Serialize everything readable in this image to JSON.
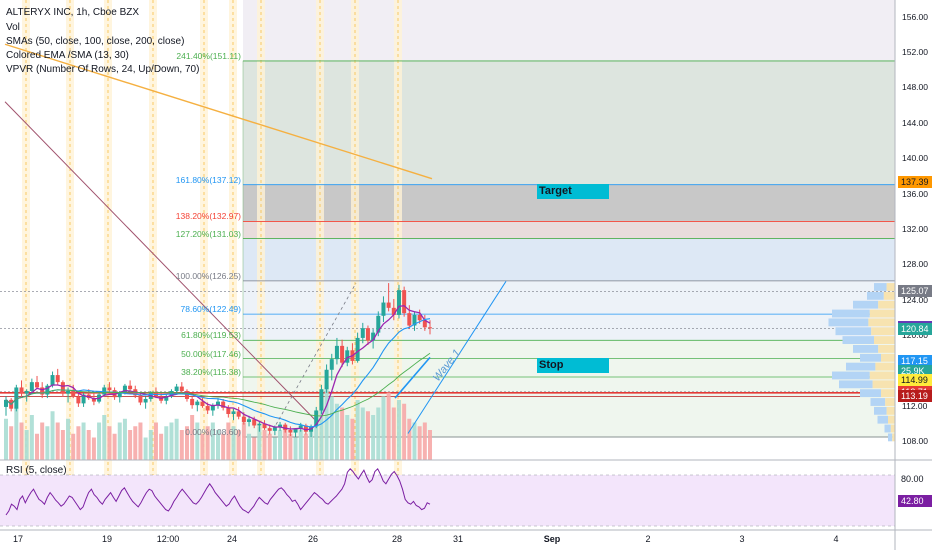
{
  "chart_data": {
    "type": "candlestick",
    "title": "ALTERYX INC, 1h, Cboe BZX",
    "indicators": [
      "Vol",
      "SMAs (50, close, 100, close, 200, close)",
      "Colored EMA /SMA (13, 30)",
      "VPVR (Number Of Rows, 24, Up/Down, 70)"
    ],
    "annotations": {
      "target": "Target",
      "stop": "Stop",
      "wave": "Wave 1"
    },
    "price_axis_ticks": [
      156,
      152,
      148,
      144,
      140,
      136,
      132,
      128,
      124,
      120,
      116,
      112,
      108
    ],
    "price_axis_labels": [
      "156.00",
      "152.00",
      "148.00",
      "144.00",
      "140.00",
      "136.00",
      "132.00",
      "128.00",
      "124.00",
      "120.00",
      "116.00",
      "112.00",
      "108.00"
    ],
    "x_ticks": [
      "17",
      "19",
      "12:00",
      "24",
      "26",
      "28",
      "31",
      "Sep",
      "2",
      "3",
      "4"
    ],
    "fib_levels": [
      {
        "label": "241.40%(151.11)",
        "price": 151.11,
        "color": "#4caf50"
      },
      {
        "label": "161.80%(137.12)",
        "price": 137.12,
        "color": "#2196f3"
      },
      {
        "label": "138.20%(132.97)",
        "price": 132.97,
        "color": "#f44336"
      },
      {
        "label": "127.20%(131.03)",
        "price": 131.03,
        "color": "#4caf50"
      },
      {
        "label": "100.00%(126.25)",
        "price": 126.25,
        "color": "#787b86"
      },
      {
        "label": "78.60%(122.49)",
        "price": 122.49,
        "color": "#2196f3"
      },
      {
        "label": "61.80%(119.53)",
        "price": 119.53,
        "color": "#4caf50"
      },
      {
        "label": "50.00%(117.46)",
        "price": 117.46,
        "color": "#4caf50"
      },
      {
        "label": "38.20%(115.38)",
        "price": 115.38,
        "color": "#4caf50"
      },
      {
        "label": "0.00%(108.60)",
        "price": 108.6,
        "color": "#787b86"
      }
    ],
    "price_tags": [
      {
        "text": "137.39",
        "price": 137.39,
        "bg": "#ff9800",
        "fg": "#131722"
      },
      {
        "text": "125.07",
        "price": 125.07,
        "bg": "#787b86",
        "fg": "#ffffff"
      },
      {
        "text": "120.98",
        "price": 120.98,
        "bg": "#673ab7",
        "fg": "#ffffff"
      },
      {
        "text": "120.84",
        "price": 120.84,
        "bg": "#26a69a",
        "fg": "#ffffff"
      },
      {
        "text": "117.15",
        "price": 117.15,
        "bg": "#2196f3",
        "fg": "#ffffff"
      },
      {
        "text": "25.9K",
        "price": 116.1,
        "bg": "#26a69a",
        "fg": "#ffffff"
      },
      {
        "text": "114.99",
        "price": 114.99,
        "bg": "#ffeb3b",
        "fg": "#131722"
      },
      {
        "text": "113.71",
        "price": 113.71,
        "bg": "#e53935",
        "fg": "#ffffff"
      },
      {
        "text": "113.19",
        "price": 113.19,
        "bg": "#b71c1c",
        "fg": "#ffffff"
      }
    ],
    "ylim": [
      106,
      158
    ],
    "rsi": {
      "title": "RSI (5, close)",
      "ticks": [
        "80.00",
        "42.80"
      ],
      "ylim": [
        0,
        100
      ],
      "values": [
        22,
        28,
        38,
        35,
        30,
        45,
        50,
        40,
        48,
        55,
        60,
        52,
        45,
        42,
        38,
        48,
        55,
        50,
        44,
        40,
        35,
        38,
        44,
        50,
        48,
        42,
        36,
        30,
        34,
        45,
        55,
        60,
        52,
        48,
        42,
        38,
        45,
        50,
        55,
        48,
        42,
        50,
        58,
        62,
        55,
        48,
        42,
        38,
        34,
        40,
        48,
        55,
        60,
        58,
        50,
        45,
        40,
        35,
        30,
        28,
        34,
        42,
        48,
        55,
        60,
        55,
        50,
        45,
        40,
        38,
        42,
        48,
        55,
        62,
        68,
        62,
        55,
        50,
        45,
        40,
        35,
        38,
        45,
        50,
        42,
        35,
        30,
        28,
        25,
        30,
        35,
        42,
        48,
        44,
        40,
        38,
        45,
        50,
        55,
        60,
        62,
        58,
        52,
        48,
        42,
        44,
        38,
        30,
        35,
        40,
        45,
        50,
        55,
        52,
        48,
        45,
        40,
        38,
        42,
        46,
        50,
        55,
        60,
        68,
        85,
        90,
        86,
        80,
        75,
        82,
        88,
        78,
        70,
        74,
        86,
        90,
        82,
        72,
        68,
        75,
        82,
        86,
        80,
        72,
        60,
        45,
        40,
        38,
        42,
        36,
        34,
        30,
        32,
        40,
        38
      ],
      "current": 42.8
    },
    "candles": [
      [
        112.0,
        113.2,
        111.0,
        112.8
      ],
      [
        112.8,
        113.0,
        111.5,
        111.8
      ],
      [
        111.8,
        114.5,
        111.5,
        114.2
      ],
      [
        114.2,
        115.0,
        113.0,
        113.5
      ],
      [
        113.5,
        114.0,
        112.6,
        113.8
      ],
      [
        113.8,
        115.2,
        113.5,
        114.8
      ],
      [
        114.8,
        115.5,
        114.0,
        114.2
      ],
      [
        114.2,
        114.8,
        113.0,
        113.4
      ],
      [
        113.4,
        114.6,
        113.0,
        114.4
      ],
      [
        114.4,
        116.0,
        114.2,
        115.6
      ],
      [
        115.6,
        116.3,
        114.5,
        114.8
      ],
      [
        114.8,
        115.0,
        113.2,
        113.5
      ],
      [
        113.5,
        114.2,
        112.5,
        113.8
      ],
      [
        113.8,
        114.5,
        113.0,
        113.2
      ],
      [
        113.2,
        113.8,
        112.0,
        112.4
      ],
      [
        112.4,
        113.6,
        112.0,
        113.4
      ],
      [
        113.4,
        114.0,
        112.8,
        113.0
      ],
      [
        113.0,
        113.5,
        112.2,
        112.6
      ],
      [
        112.6,
        113.6,
        112.4,
        113.4
      ],
      [
        113.4,
        114.5,
        113.2,
        114.2
      ],
      [
        114.2,
        114.8,
        113.6,
        113.9
      ],
      [
        113.9,
        114.2,
        112.8,
        113.1
      ],
      [
        113.1,
        113.8,
        112.5,
        113.6
      ],
      [
        113.6,
        114.6,
        113.4,
        114.4
      ],
      [
        114.4,
        115.0,
        113.8,
        114.0
      ],
      [
        114.0,
        114.4,
        113.0,
        113.3
      ],
      [
        113.3,
        113.6,
        112.2,
        112.5
      ],
      [
        112.5,
        113.2,
        111.8,
        112.9
      ],
      [
        112.9,
        113.8,
        112.6,
        113.6
      ],
      [
        113.6,
        114.2,
        113.0,
        113.2
      ],
      [
        113.2,
        113.5,
        112.4,
        112.7
      ],
      [
        112.7,
        113.4,
        112.3,
        113.2
      ],
      [
        113.2,
        114.0,
        113.0,
        113.8
      ],
      [
        113.8,
        114.6,
        113.4,
        114.3
      ],
      [
        114.3,
        114.8,
        113.6,
        113.8
      ],
      [
        113.8,
        114.0,
        112.6,
        112.9
      ],
      [
        112.9,
        113.2,
        111.8,
        112.2
      ],
      [
        112.2,
        112.8,
        111.5,
        112.6
      ],
      [
        112.6,
        113.0,
        111.9,
        112.1
      ],
      [
        112.1,
        112.5,
        111.2,
        111.6
      ],
      [
        111.6,
        112.4,
        111.0,
        112.2
      ],
      [
        112.2,
        113.0,
        111.8,
        112.6
      ],
      [
        112.6,
        112.9,
        111.6,
        111.9
      ],
      [
        111.9,
        112.2,
        110.8,
        111.2
      ],
      [
        111.2,
        111.8,
        110.5,
        111.5
      ],
      [
        111.5,
        112.0,
        110.6,
        110.9
      ],
      [
        110.9,
        111.4,
        110.0,
        110.3
      ],
      [
        110.3,
        111.0,
        109.8,
        110.6
      ],
      [
        110.6,
        110.9,
        109.6,
        109.9
      ],
      [
        109.9,
        110.4,
        109.2,
        110.1
      ],
      [
        110.1,
        110.5,
        109.4,
        109.6
      ],
      [
        109.6,
        110.0,
        108.9,
        109.3
      ],
      [
        109.3,
        109.9,
        108.8,
        109.7
      ],
      [
        109.7,
        110.3,
        109.3,
        110.0
      ],
      [
        110.0,
        110.2,
        109.1,
        109.4
      ],
      [
        109.4,
        109.8,
        108.7,
        109.1
      ],
      [
        109.1,
        109.6,
        108.6,
        109.5
      ],
      [
        109.5,
        110.2,
        109.2,
        109.9
      ],
      [
        109.9,
        110.1,
        108.9,
        109.2
      ],
      [
        109.2,
        110.0,
        108.6,
        109.8
      ],
      [
        109.8,
        112.0,
        109.6,
        111.6
      ],
      [
        111.6,
        114.5,
        111.2,
        114.0
      ],
      [
        114.0,
        116.8,
        113.6,
        116.2
      ],
      [
        116.2,
        118.0,
        115.0,
        117.4
      ],
      [
        117.4,
        119.8,
        116.8,
        118.9
      ],
      [
        118.9,
        119.6,
        116.5,
        117.0
      ],
      [
        117.0,
        118.8,
        116.6,
        118.4
      ],
      [
        118.4,
        119.2,
        116.8,
        117.2
      ],
      [
        117.2,
        120.4,
        117.0,
        119.8
      ],
      [
        119.8,
        121.5,
        119.2,
        120.9
      ],
      [
        120.9,
        121.2,
        119.0,
        119.5
      ],
      [
        119.5,
        120.8,
        118.6,
        120.4
      ],
      [
        120.4,
        122.8,
        120.0,
        122.3
      ],
      [
        122.3,
        124.5,
        121.6,
        123.8
      ],
      [
        123.8,
        126.0,
        122.8,
        123.2
      ],
      [
        123.2,
        124.2,
        121.8,
        122.4
      ],
      [
        122.4,
        125.8,
        122.0,
        125.2
      ],
      [
        125.2,
        125.6,
        122.2,
        122.6
      ],
      [
        122.6,
        123.5,
        120.8,
        121.2
      ],
      [
        121.2,
        122.8,
        120.6,
        122.4
      ],
      [
        122.4,
        123.0,
        121.4,
        121.8
      ],
      [
        121.8,
        122.4,
        120.6,
        121.0
      ],
      [
        121.0,
        121.8,
        120.2,
        120.9
      ]
    ],
    "volume": [
      0.55,
      0.45,
      0.7,
      0.5,
      0.4,
      0.6,
      0.35,
      0.5,
      0.45,
      0.65,
      0.5,
      0.4,
      0.55,
      0.35,
      0.45,
      0.5,
      0.4,
      0.3,
      0.5,
      0.6,
      0.45,
      0.35,
      0.5,
      0.55,
      0.4,
      0.45,
      0.5,
      0.3,
      0.4,
      0.5,
      0.35,
      0.45,
      0.5,
      0.55,
      0.4,
      0.45,
      0.6,
      0.5,
      0.35,
      0.45,
      0.5,
      0.4,
      0.35,
      0.5,
      0.45,
      0.4,
      0.5,
      0.35,
      0.3,
      0.45,
      0.4,
      0.35,
      0.3,
      0.4,
      0.45,
      0.35,
      0.3,
      0.4,
      0.35,
      0.45,
      0.6,
      0.9,
      1.0,
      0.85,
      0.75,
      0.7,
      0.6,
      0.55,
      0.8,
      0.7,
      0.65,
      0.6,
      0.7,
      0.85,
      0.9,
      0.7,
      0.8,
      0.75,
      0.55,
      0.5,
      0.45,
      0.5,
      0.4
    ],
    "projection": {
      "wave_start": 110.0,
      "wave_peak": 125.8,
      "cursor_level": 114.99
    }
  }
}
